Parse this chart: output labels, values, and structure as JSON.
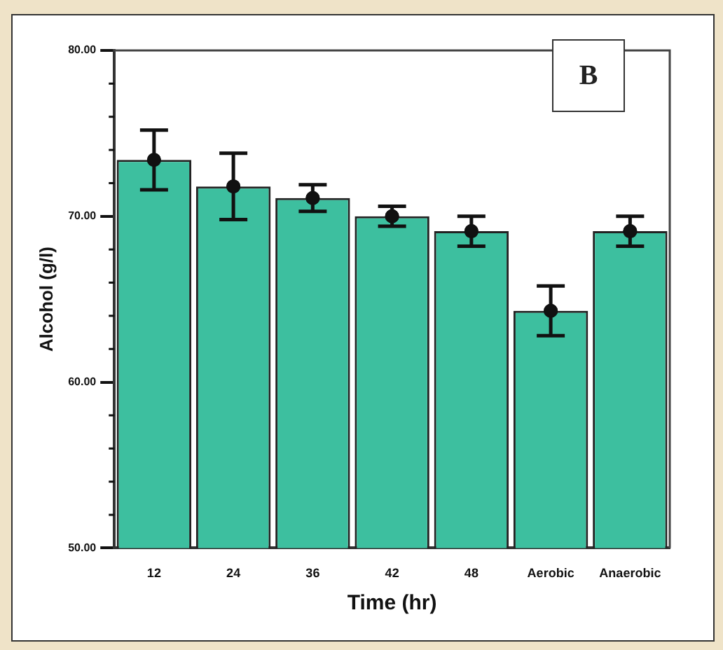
{
  "chart_data": {
    "type": "bar",
    "xlabel": "Time (hr)",
    "ylabel": "Alcohol (g/l)",
    "categories": [
      "12",
      "24",
      "36",
      "42",
      "48",
      "Aerobic",
      "Anaerobic"
    ],
    "series": [
      {
        "color": "#3dbf9f",
        "values": [
          73.4,
          71.8,
          71.1,
          70.0,
          69.1,
          64.3,
          69.1
        ],
        "errors": [
          1.8,
          2.0,
          0.8,
          0.6,
          0.9,
          1.5,
          0.9
        ]
      },
      {
        "type": "scatter",
        "color": "#111111",
        "marker": "circle",
        "x": [
          "12",
          "24",
          "36",
          "42",
          "48",
          "Aerobic",
          "Anaerobic"
        ],
        "values": [
          73.4,
          71.8,
          71.1,
          70.0,
          69.1,
          64.3,
          69.1
        ]
      }
    ],
    "ylim": [
      50,
      80
    ],
    "yticks": [
      {
        "value": 50,
        "label": "50.00"
      },
      {
        "value": 60,
        "label": "60.00"
      },
      {
        "value": 70,
        "label": "70.00"
      },
      {
        "value": 80,
        "label": "80.00"
      }
    ],
    "grid": false,
    "legend": false,
    "annotations": [
      "B"
    ]
  }
}
